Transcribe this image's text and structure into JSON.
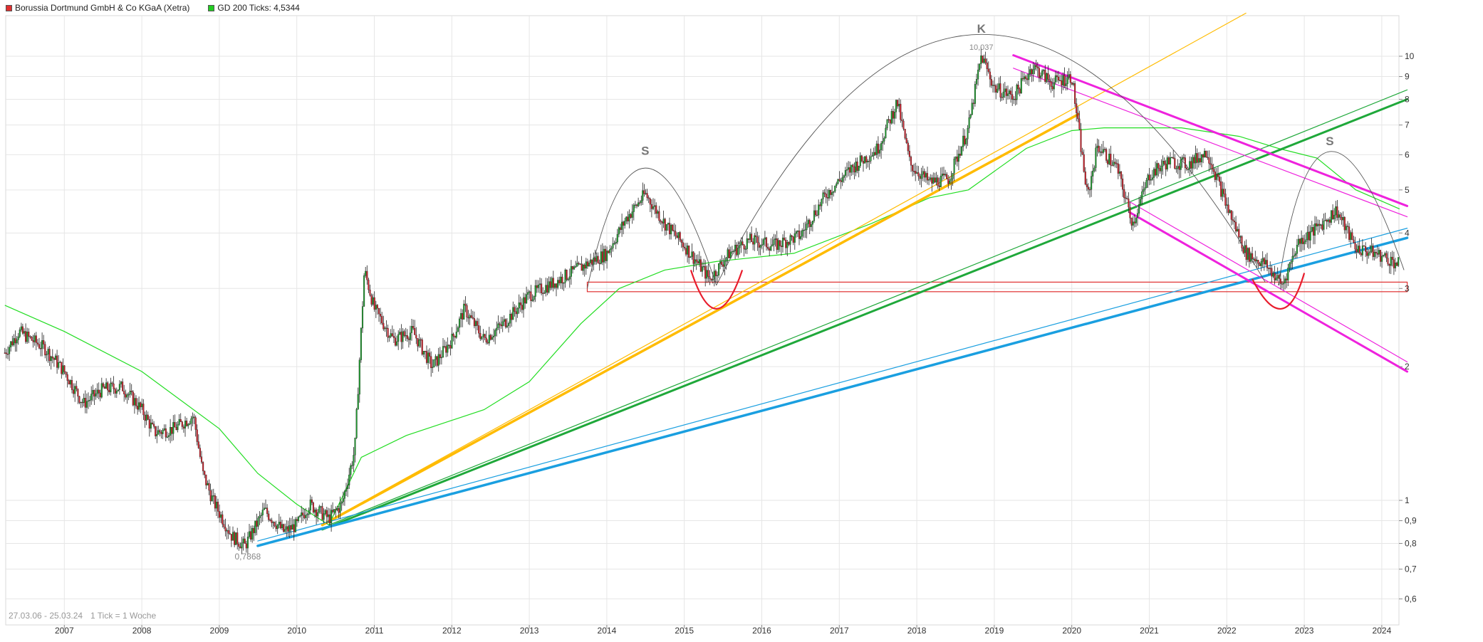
{
  "chart_data": {
    "type": "candlestick",
    "title": "",
    "legend": [
      {
        "label": "Borussia Dortmund GmbH & Co KGaA (Xetra)",
        "color": "#e03030"
      },
      {
        "label": "GD 200 Ticks: 4,5344",
        "color": "#22cc22"
      }
    ],
    "legend_position": "top-left",
    "grid": true,
    "y_scale": "log",
    "ylim": [
      0.55,
      11.6
    ],
    "y_ticks": [
      {
        "value": 0.6,
        "label": "0,6"
      },
      {
        "value": 0.7,
        "label": "0,7"
      },
      {
        "value": 0.8,
        "label": "0,8"
      },
      {
        "value": 0.9,
        "label": "0,9"
      },
      {
        "value": 1,
        "label": "1"
      },
      {
        "value": 2,
        "label": "2"
      },
      {
        "value": 3,
        "label": "3"
      },
      {
        "value": 4,
        "label": "4"
      },
      {
        "value": 5,
        "label": "5"
      },
      {
        "value": 6,
        "label": "6"
      },
      {
        "value": 7,
        "label": "7"
      },
      {
        "value": 8,
        "label": "8"
      },
      {
        "value": 9,
        "label": "9"
      },
      {
        "value": 10,
        "label": "10"
      }
    ],
    "xlim": [
      "2006-03-27",
      "2024-03-25"
    ],
    "x_ticks": [
      {
        "date": "2007-01-01",
        "label": "2007"
      },
      {
        "date": "2008-01-01",
        "label": "2008"
      },
      {
        "date": "2009-01-01",
        "label": "2009"
      },
      {
        "date": "2010-01-01",
        "label": "2010"
      },
      {
        "date": "2011-01-01",
        "label": "2011"
      },
      {
        "date": "2012-01-01",
        "label": "2012"
      },
      {
        "date": "2013-01-01",
        "label": "2013"
      },
      {
        "date": "2014-01-01",
        "label": "2014"
      },
      {
        "date": "2015-01-01",
        "label": "2015"
      },
      {
        "date": "2016-01-01",
        "label": "2016"
      },
      {
        "date": "2017-01-01",
        "label": "2017"
      },
      {
        "date": "2018-01-01",
        "label": "2018"
      },
      {
        "date": "2019-01-01",
        "label": "2019"
      },
      {
        "date": "2020-01-01",
        "label": "2020"
      },
      {
        "date": "2021-01-01",
        "label": "2021"
      },
      {
        "date": "2022-01-01",
        "label": "2022"
      },
      {
        "date": "2023-01-01",
        "label": "2023"
      },
      {
        "date": "2024-01-01",
        "label": "2024"
      }
    ],
    "price_points": [
      [
        "2006-03-27",
        2.15
      ],
      [
        "2006-06-01",
        2.4
      ],
      [
        "2006-10-01",
        2.2
      ],
      [
        "2007-01-01",
        1.95
      ],
      [
        "2007-04-01",
        1.65
      ],
      [
        "2007-07-01",
        1.78
      ],
      [
        "2007-10-01",
        1.8
      ],
      [
        "2008-01-01",
        1.6
      ],
      [
        "2008-03-01",
        1.42
      ],
      [
        "2008-06-01",
        1.45
      ],
      [
        "2008-09-01",
        1.55
      ],
      [
        "2008-10-15",
        1.15
      ],
      [
        "2008-12-01",
        1.0
      ],
      [
        "2009-03-01",
        0.83
      ],
      [
        "2009-05-01",
        0.79
      ],
      [
        "2009-08-01",
        0.95
      ],
      [
        "2009-11-01",
        0.85
      ],
      [
        "2010-01-01",
        0.88
      ],
      [
        "2010-03-01",
        0.98
      ],
      [
        "2010-06-01",
        0.91
      ],
      [
        "2010-08-01",
        0.98
      ],
      [
        "2010-10-01",
        1.3
      ],
      [
        "2010-11-15",
        3.3
      ],
      [
        "2011-01-01",
        2.7
      ],
      [
        "2011-04-01",
        2.3
      ],
      [
        "2011-07-01",
        2.4
      ],
      [
        "2011-10-01",
        2.0
      ],
      [
        "2012-01-01",
        2.3
      ],
      [
        "2012-03-01",
        2.7
      ],
      [
        "2012-06-01",
        2.3
      ],
      [
        "2012-09-01",
        2.5
      ],
      [
        "2013-01-01",
        2.9
      ],
      [
        "2013-05-01",
        3.1
      ],
      [
        "2013-09-01",
        3.35
      ],
      [
        "2014-01-01",
        3.6
      ],
      [
        "2014-04-01",
        4.3
      ],
      [
        "2014-07-01",
        4.9
      ],
      [
        "2014-10-01",
        4.2
      ],
      [
        "2015-01-01",
        3.75
      ],
      [
        "2015-05-01",
        3.15
      ],
      [
        "2015-08-01",
        3.6
      ],
      [
        "2015-11-01",
        3.85
      ],
      [
        "2016-03-01",
        3.75
      ],
      [
        "2016-07-01",
        3.95
      ],
      [
        "2016-11-01",
        4.9
      ],
      [
        "2017-03-01",
        5.6
      ],
      [
        "2017-07-01",
        6.2
      ],
      [
        "2017-10-01",
        7.9
      ],
      [
        "2017-12-01",
        5.7
      ],
      [
        "2018-03-01",
        5.2
      ],
      [
        "2018-06-01",
        5.3
      ],
      [
        "2018-09-01",
        6.9
      ],
      [
        "2018-11-01",
        10.04
      ],
      [
        "2019-01-01",
        8.5
      ],
      [
        "2019-04-01",
        8.1
      ],
      [
        "2019-07-01",
        9.5
      ],
      [
        "2019-10-01",
        8.7
      ],
      [
        "2020-01-01",
        9.0
      ],
      [
        "2020-03-15",
        4.8
      ],
      [
        "2020-05-01",
        6.3
      ],
      [
        "2020-08-01",
        5.6
      ],
      [
        "2020-10-15",
        4.2
      ],
      [
        "2021-01-01",
        5.4
      ],
      [
        "2021-04-01",
        5.8
      ],
      [
        "2021-07-01",
        5.7
      ],
      [
        "2021-10-01",
        6.1
      ],
      [
        "2022-01-01",
        4.6
      ],
      [
        "2022-04-01",
        3.6
      ],
      [
        "2022-07-01",
        3.4
      ],
      [
        "2022-09-20",
        3.05
      ],
      [
        "2022-12-01",
        3.8
      ],
      [
        "2023-03-01",
        4.1
      ],
      [
        "2023-06-01",
        4.5
      ],
      [
        "2023-09-01",
        3.7
      ],
      [
        "2023-12-01",
        3.6
      ],
      [
        "2024-03-25",
        3.4
      ]
    ],
    "sma_points": [
      [
        "2006-03-27",
        2.75
      ],
      [
        "2007-01-01",
        2.4
      ],
      [
        "2008-01-01",
        1.95
      ],
      [
        "2009-01-01",
        1.45
      ],
      [
        "2009-07-01",
        1.15
      ],
      [
        "2010-01-01",
        0.98
      ],
      [
        "2010-06-01",
        0.88
      ],
      [
        "2010-11-01",
        1.25
      ],
      [
        "2011-06-01",
        1.4
      ],
      [
        "2012-06-01",
        1.6
      ],
      [
        "2013-01-01",
        1.85
      ],
      [
        "2013-09-01",
        2.5
      ],
      [
        "2014-03-01",
        3.0
      ],
      [
        "2014-10-01",
        3.3
      ],
      [
        "2015-06-01",
        3.45
      ],
      [
        "2016-06-01",
        3.6
      ],
      [
        "2017-06-01",
        4.2
      ],
      [
        "2018-03-01",
        4.8
      ],
      [
        "2018-09-01",
        5.0
      ],
      [
        "2019-06-01",
        6.2
      ],
      [
        "2020-01-01",
        6.8
      ],
      [
        "2020-06-01",
        6.9
      ],
      [
        "2021-06-01",
        6.9
      ],
      [
        "2022-03-01",
        6.6
      ],
      [
        "2022-09-01",
        6.2
      ],
      [
        "2023-03-01",
        5.9
      ],
      [
        "2023-09-01",
        5.0
      ],
      [
        "2024-03-25",
        4.53
      ]
    ],
    "annotations": {
      "period_label": "27.03.06 - 25.03.24",
      "interval_label": "1 Tick = 1 Woche",
      "low_label": "0,7868",
      "low_point": [
        "2009-05-15",
        0.7868
      ],
      "high_label": "10,037",
      "high_point": [
        "2018-11-01",
        10.037
      ],
      "pattern_labels": [
        {
          "text": "S",
          "date": "2014-07-01",
          "value": 6.0
        },
        {
          "text": "K",
          "date": "2018-11-01",
          "value": 11.3
        },
        {
          "text": "S",
          "date": "2023-05-01",
          "value": 6.3
        }
      ],
      "arcs": [
        {
          "points": [
            [
              "2013-10-01",
              3.0
            ],
            [
              "2014-07-01",
              5.6
            ],
            [
              "2015-06-01",
              3.05
            ]
          ]
        },
        {
          "points": [
            [
              "2015-06-01",
              3.05
            ],
            [
              "2018-11-01",
              11.2
            ],
            [
              "2022-07-01",
              3.1
            ]
          ]
        },
        {
          "points": [
            [
              "2022-09-01",
              3.05
            ],
            [
              "2023-05-01",
              6.1
            ],
            [
              "2024-04-15",
              3.3
            ]
          ]
        }
      ],
      "cups": [
        {
          "from": [
            "2015-02-01",
            3.3
          ],
          "mid": [
            "2015-06-01",
            2.7
          ],
          "to": [
            "2015-10-01",
            3.3
          ]
        },
        {
          "from": [
            "2022-05-01",
            3.15
          ],
          "mid": [
            "2022-09-15",
            2.7
          ],
          "to": [
            "2023-01-01",
            3.25
          ]
        }
      ],
      "support_zone": {
        "from": "2013-10-01",
        "to": "2024-04-30",
        "low": 2.95,
        "high": 3.1,
        "color": "#e03030"
      },
      "trend_lines": [
        {
          "color": "#ffbb00",
          "width": 3.5,
          "from": [
            "2010-05-01",
            0.88
          ],
          "to": [
            "2020-02-01",
            7.4
          ]
        },
        {
          "color": "#ffbb00",
          "width": 1.2,
          "from": [
            "2010-06-01",
            0.9
          ],
          "to": [
            "2022-04-01",
            12.5
          ]
        },
        {
          "color": "#1fa83a",
          "width": 3.0,
          "from": [
            "2010-05-01",
            0.86
          ],
          "to": [
            "2024-04-30",
            8.0
          ]
        },
        {
          "color": "#1fa83a",
          "width": 1.2,
          "from": [
            "2010-06-01",
            0.88
          ],
          "to": [
            "2024-04-30",
            8.4
          ]
        },
        {
          "color": "#1a9fe0",
          "width": 3.5,
          "from": [
            "2009-07-01",
            0.79
          ],
          "to": [
            "2024-04-30",
            3.9
          ]
        },
        {
          "color": "#1a9fe0",
          "width": 1.2,
          "from": [
            "2009-07-01",
            0.81
          ],
          "to": [
            "2024-04-30",
            4.1
          ]
        },
        {
          "color": "#ee22dd",
          "width": 3.0,
          "from": [
            "2019-04-01",
            10.05
          ],
          "to": [
            "2024-04-30",
            4.6
          ]
        },
        {
          "color": "#ee22dd",
          "width": 1.2,
          "from": [
            "2019-04-01",
            9.4
          ],
          "to": [
            "2024-04-30",
            4.35
          ]
        },
        {
          "color": "#ee22dd",
          "width": 3.0,
          "from": [
            "2020-10-01",
            4.45
          ],
          "to": [
            "2024-04-30",
            1.95
          ]
        },
        {
          "color": "#ee22dd",
          "width": 1.2,
          "from": [
            "2020-10-01",
            4.7
          ],
          "to": [
            "2024-04-30",
            2.05
          ]
        }
      ]
    }
  }
}
